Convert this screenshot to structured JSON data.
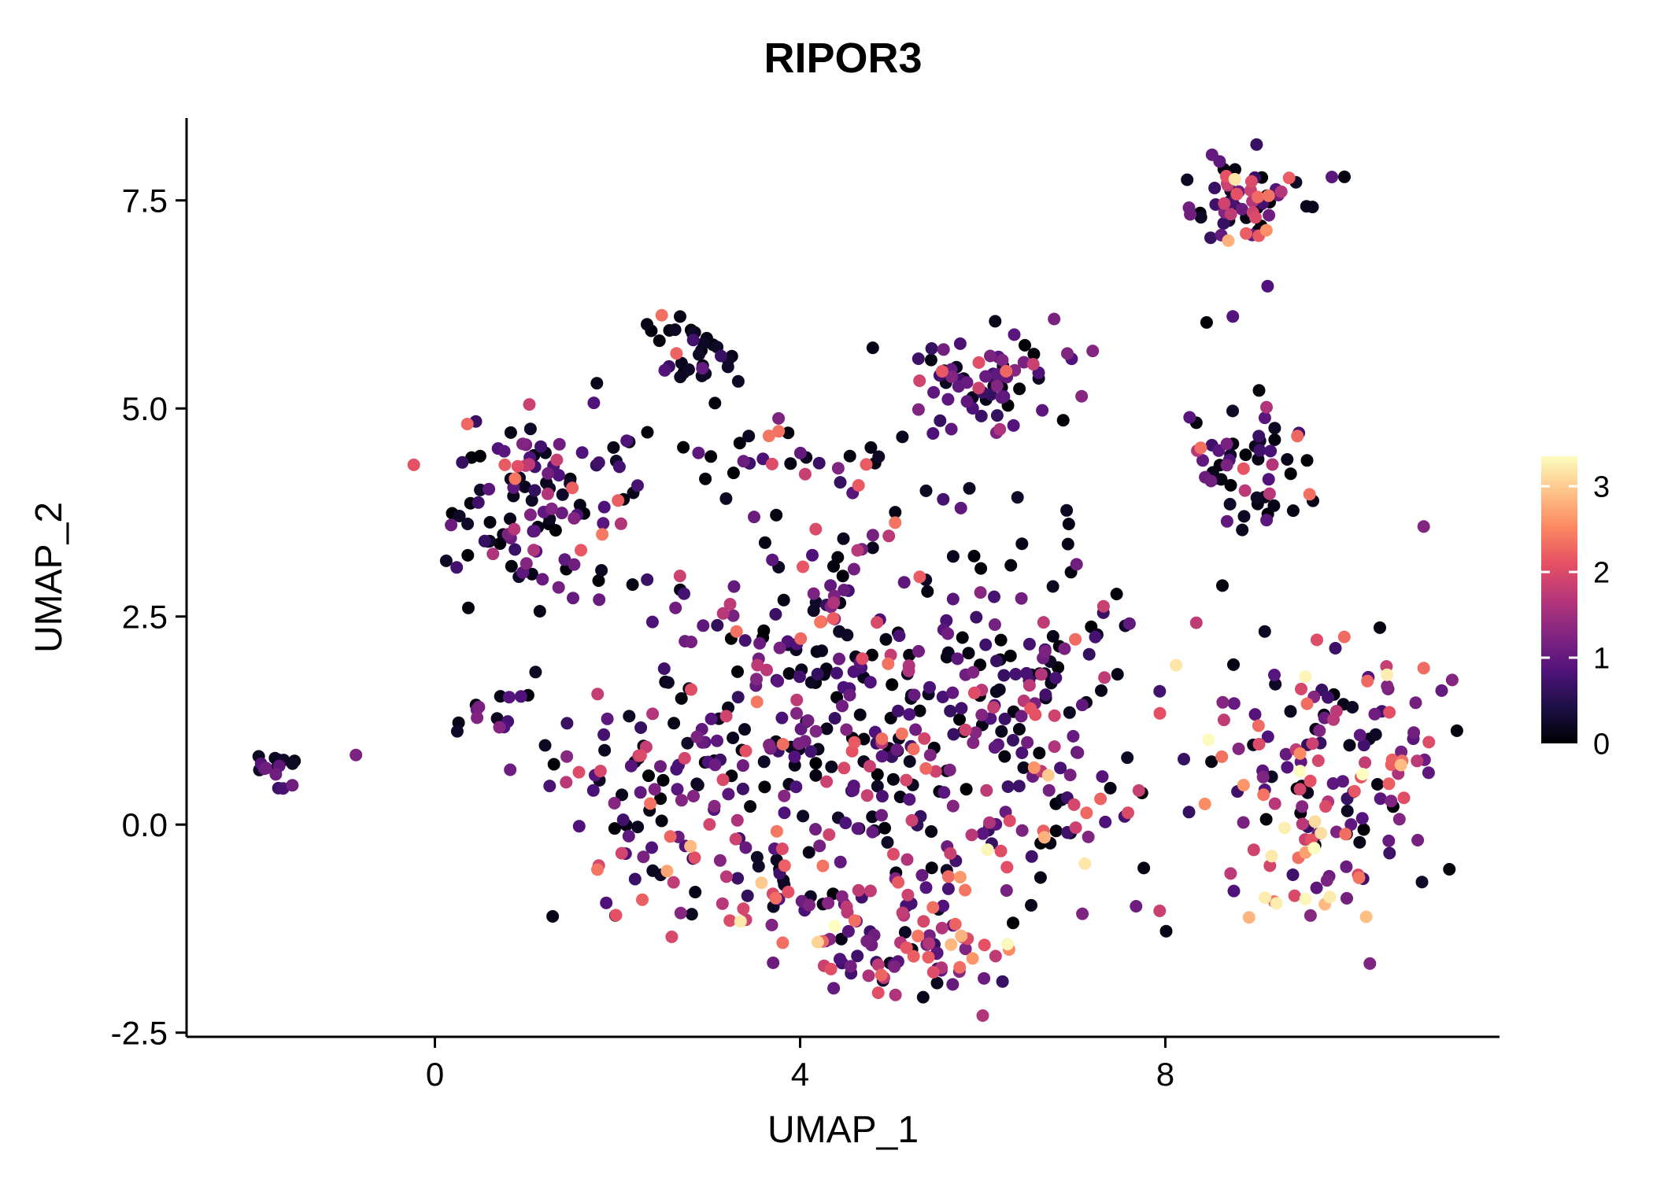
{
  "title": "RIPOR3",
  "chart_data": {
    "type": "scatter",
    "title": "RIPOR3",
    "xlabel": "UMAP_1",
    "ylabel": "UMAP_2",
    "xlim": [
      -2.72,
      11.66
    ],
    "ylim": [
      -2.55,
      8.49
    ],
    "x_ticks": [
      0,
      4,
      8
    ],
    "y_ticks": [
      -2.5,
      0.0,
      2.5,
      5.0,
      7.5
    ],
    "grid": false,
    "legend_position": "right",
    "point_radius": 8,
    "seed": 20240613,
    "colorbar": {
      "label_values": [
        3,
        2,
        1,
        0
      ],
      "tick_values": [
        0,
        1,
        2,
        3
      ],
      "vmin": 0,
      "vmax": 3.35,
      "stops": [
        "#000004",
        "#1c1044",
        "#4f127b",
        "#812581",
        "#b5367a",
        "#e55064",
        "#fb8761",
        "#fec287",
        "#fcfdbf"
      ]
    },
    "value_bands": [
      [
        0,
        0.25
      ],
      [
        0.6,
        1.3
      ],
      [
        1.6,
        2.4
      ],
      [
        2.5,
        3.4
      ]
    ],
    "clusters": [
      {
        "name": "far-left-clump",
        "n": 16,
        "cx": -1.75,
        "cy": 0.65,
        "sx": 0.16,
        "sy": 0.12,
        "w": [
          0.5,
          0.45,
          0.05,
          0.0
        ]
      },
      {
        "name": "far-left-stray",
        "n": 1,
        "cx": -0.85,
        "cy": 0.85,
        "sx": 0.02,
        "sy": 0.02,
        "w": [
          0.0,
          1.0,
          0.0,
          0.0
        ]
      },
      {
        "name": "left-upper",
        "n": 115,
        "cx": 1.15,
        "cy": 3.85,
        "sx": 0.52,
        "sy": 0.58,
        "w": [
          0.42,
          0.38,
          0.18,
          0.02
        ]
      },
      {
        "name": "left-arm",
        "n": 14,
        "cx": 0.6,
        "cy": 1.3,
        "sx": 0.28,
        "sy": 0.18,
        "w": [
          0.55,
          0.4,
          0.05,
          0.0
        ]
      },
      {
        "name": "top-center-dark",
        "n": 34,
        "cx": 2.78,
        "cy": 5.7,
        "sx": 0.28,
        "sy": 0.3,
        "w": [
          0.75,
          0.22,
          0.03,
          0.0
        ]
      },
      {
        "name": "top-mid-purple",
        "n": 72,
        "cx": 6.0,
        "cy": 5.35,
        "sx": 0.42,
        "sy": 0.38,
        "w": [
          0.28,
          0.58,
          0.14,
          0.0
        ]
      },
      {
        "name": "upper-band",
        "n": 30,
        "cx": 3.8,
        "cy": 4.4,
        "sx": 0.85,
        "sy": 0.17,
        "w": [
          0.45,
          0.35,
          0.2,
          0.0
        ]
      },
      {
        "name": "mid-sparse",
        "n": 32,
        "cx": 5.1,
        "cy": 3.55,
        "sx": 1.4,
        "sy": 0.45,
        "w": [
          0.5,
          0.3,
          0.2,
          0.0
        ]
      },
      {
        "name": "central-upper",
        "n": 130,
        "cx": 4.6,
        "cy": 2.1,
        "sx": 1.05,
        "sy": 0.6,
        "w": [
          0.45,
          0.38,
          0.17,
          0.0
        ]
      },
      {
        "name": "central-mid",
        "n": 170,
        "cx": 4.3,
        "cy": 0.75,
        "sx": 1.25,
        "sy": 0.65,
        "w": [
          0.4,
          0.42,
          0.18,
          0.0
        ]
      },
      {
        "name": "central-left-lobe",
        "n": 60,
        "cx": 2.2,
        "cy": 0.35,
        "sx": 0.5,
        "sy": 0.75,
        "w": [
          0.42,
          0.43,
          0.15,
          0.0
        ]
      },
      {
        "name": "central-right-lobe",
        "n": 70,
        "cx": 6.55,
        "cy": 1.9,
        "sx": 0.55,
        "sy": 0.65,
        "w": [
          0.45,
          0.35,
          0.2,
          0.0
        ]
      },
      {
        "name": "central-right-lower",
        "n": 42,
        "cx": 6.9,
        "cy": 0.3,
        "sx": 0.45,
        "sy": 0.55,
        "w": [
          0.25,
          0.35,
          0.3,
          0.1
        ]
      },
      {
        "name": "bottom-arc",
        "n": 130,
        "cx": 4.8,
        "cy": -0.9,
        "sx": 1.15,
        "sy": 0.5,
        "w": [
          0.2,
          0.35,
          0.35,
          0.1
        ]
      },
      {
        "name": "bottom-tip",
        "n": 30,
        "cx": 5.3,
        "cy": -1.65,
        "sx": 0.55,
        "sy": 0.22,
        "w": [
          0.1,
          0.3,
          0.45,
          0.15
        ]
      },
      {
        "name": "top-right",
        "n": 64,
        "cx": 8.85,
        "cy": 7.45,
        "sx": 0.4,
        "sy": 0.26,
        "w": [
          0.38,
          0.34,
          0.24,
          0.04
        ]
      },
      {
        "name": "top-right-strays",
        "n": 3,
        "cx": 8.75,
        "cy": 6.45,
        "sx": 0.25,
        "sy": 0.35,
        "w": [
          0.2,
          0.8,
          0.0,
          0.0
        ]
      },
      {
        "name": "right-mid",
        "n": 55,
        "cx": 8.95,
        "cy": 4.3,
        "sx": 0.36,
        "sy": 0.4,
        "w": [
          0.45,
          0.3,
          0.25,
          0.0
        ]
      },
      {
        "name": "right-bottom",
        "n": 150,
        "cx": 9.8,
        "cy": 0.7,
        "sx": 0.72,
        "sy": 0.85,
        "w": [
          0.3,
          0.35,
          0.28,
          0.07
        ]
      },
      {
        "name": "right-bottom-hot",
        "n": 20,
        "cx": 9.5,
        "cy": -0.7,
        "sx": 0.33,
        "sy": 0.28,
        "w": [
          0.05,
          0.2,
          0.4,
          0.35
        ]
      }
    ]
  }
}
